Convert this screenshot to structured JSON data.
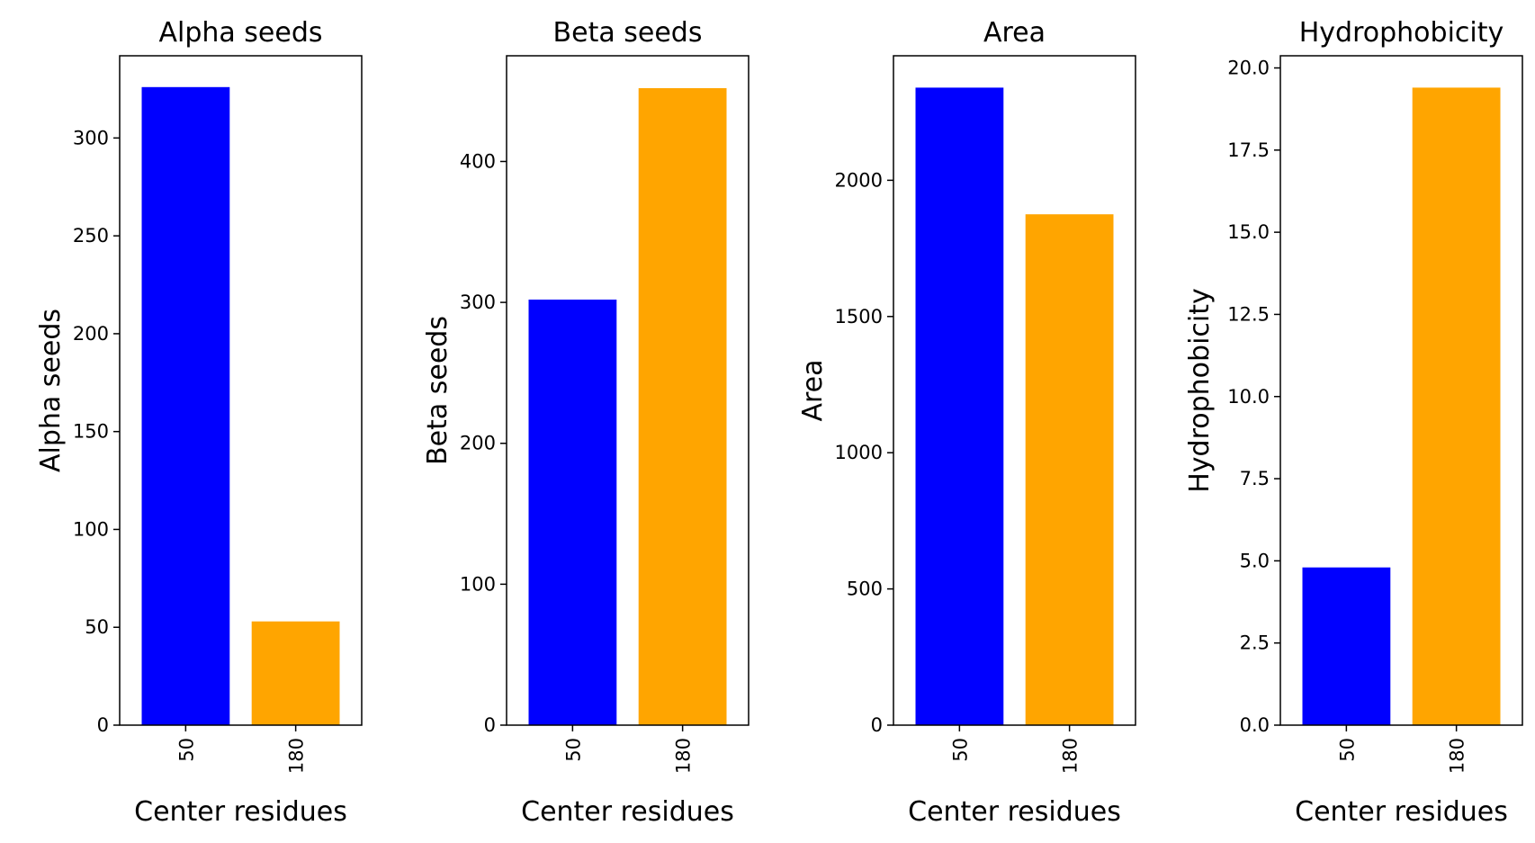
{
  "chart_data": [
    {
      "type": "bar",
      "title": "Alpha seeds",
      "xlabel": "Center residues",
      "ylabel": "Alpha seeds",
      "categories": [
        "50",
        "180"
      ],
      "values": [
        326,
        53
      ],
      "colors": [
        "#0000ff",
        "#ffa500"
      ],
      "ylim": [
        0,
        342
      ],
      "yticks": [
        0,
        50,
        100,
        150,
        200,
        250,
        300
      ],
      "ytick_labels": [
        "0",
        "50",
        "100",
        "150",
        "200",
        "250",
        "300"
      ],
      "grid": false
    },
    {
      "type": "bar",
      "title": "Beta seeds",
      "xlabel": "Center residues",
      "ylabel": "Beta seeds",
      "categories": [
        "50",
        "180"
      ],
      "values": [
        302,
        452
      ],
      "colors": [
        "#0000ff",
        "#ffa500"
      ],
      "ylim": [
        0,
        475
      ],
      "yticks": [
        0,
        100,
        200,
        300,
        400
      ],
      "ytick_labels": [
        "0",
        "100",
        "200",
        "300",
        "400"
      ],
      "grid": false
    },
    {
      "type": "bar",
      "title": "Area",
      "xlabel": "Center residues",
      "ylabel": "Area",
      "categories": [
        "50",
        "180"
      ],
      "values": [
        2340,
        1875
      ],
      "colors": [
        "#0000ff",
        "#ffa500"
      ],
      "ylim": [
        0,
        2457
      ],
      "yticks": [
        0,
        500,
        1000,
        1500,
        2000
      ],
      "ytick_labels": [
        "0",
        "500",
        "1000",
        "1500",
        "2000"
      ],
      "grid": false
    },
    {
      "type": "bar",
      "title": "Hydrophobicity",
      "xlabel": "Center residues",
      "ylabel": "Hydrophobicity",
      "categories": [
        "50",
        "180"
      ],
      "values": [
        4.8,
        19.4
      ],
      "colors": [
        "#0000ff",
        "#ffa500"
      ],
      "ylim": [
        0,
        20.37
      ],
      "yticks": [
        0,
        2.5,
        5,
        7.5,
        10,
        12.5,
        15,
        17.5,
        20
      ],
      "ytick_labels": [
        "0.0",
        "2.5",
        "5.0",
        "7.5",
        "10.0",
        "12.5",
        "15.0",
        "17.5",
        "20.0"
      ],
      "grid": false
    }
  ]
}
